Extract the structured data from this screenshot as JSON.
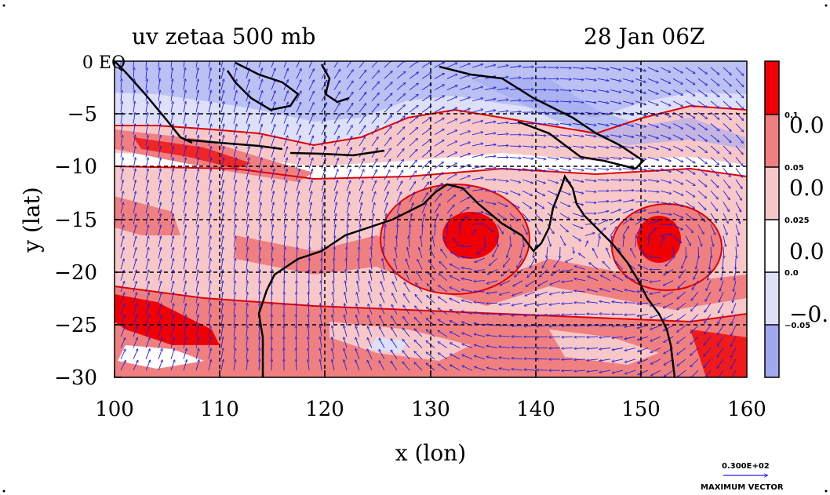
{
  "title_left": "uv zetaa 500 mb",
  "title_right": "28 Jan 06Z",
  "xlabel": "x (lon)",
  "ylabel": "y (lat)",
  "x_ticks": [
    "100",
    "110",
    "120",
    "130",
    "140",
    "150",
    "160"
  ],
  "y_ticks": [
    "0 EQ",
    "−5",
    "−10",
    "−15",
    "−20",
    "−25",
    "−30"
  ],
  "colorbar": {
    "small_labels": [
      "0.1",
      "0.05",
      "0.025",
      "0.0",
      "−0.05"
    ],
    "large_labels": [
      "0.0",
      "0.0",
      "0.0",
      "−0."
    ],
    "colors": [
      "#f00000",
      "#f08080",
      "#f8c8c8",
      "#ffffff",
      "#dde0f8",
      "#a0a8f0"
    ]
  },
  "vector_key": {
    "value": "0.300E+02",
    "label": "MAXIMUM VECTOR"
  },
  "chart_data": {
    "type": "heatmap",
    "title": "uv zetaa 500 mb",
    "subtitle": "28 Jan 06Z",
    "xlabel": "x (lon)",
    "ylabel": "y (lat)",
    "xlim": [
      100,
      160
    ],
    "ylim": [
      -30,
      0
    ],
    "grid": true,
    "contour_levels": [
      -0.05,
      0.0,
      0.025,
      0.05,
      0.1
    ],
    "legend_position": "right"
  }
}
